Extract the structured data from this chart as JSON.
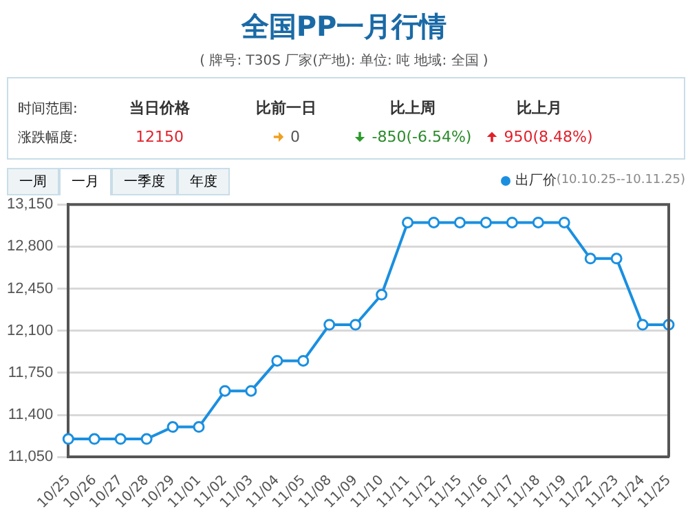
{
  "chart_data": {
    "type": "line",
    "title": "全国PP一月行情",
    "subtitle": "( 牌号: T30S 厂家(产地): 单位: 吨 地域: 全国 )",
    "annotations": [
      "时间范围:",
      "涨跌幅度:",
      "当日价格",
      "12150",
      "比前一日",
      "0",
      "比上周",
      "-850(-6.54%)",
      "比上月",
      "950(8.48%)",
      "一周",
      "一月",
      "一季度",
      "年度",
      "(10.10.25--10.11.25)"
    ],
    "categories": [
      "10/25",
      "10/26",
      "10/27",
      "10/28",
      "10/29",
      "11/01",
      "11/02",
      "11/03",
      "11/04",
      "11/05",
      "11/08",
      "11/09",
      "11/10",
      "11/11",
      "11/12",
      "11/15",
      "11/16",
      "11/17",
      "11/18",
      "11/19",
      "11/22",
      "11/23",
      "11/24",
      "11/25"
    ],
    "series": [
      {
        "name": "出厂价",
        "color": "#1a8fe0",
        "values": [
          11200,
          11200,
          11200,
          11200,
          11300,
          11300,
          11600,
          11600,
          11850,
          11850,
          12150,
          12150,
          12400,
          13000,
          13000,
          13000,
          13000,
          13000,
          13000,
          13000,
          12700,
          12700,
          12150,
          12150
        ]
      }
    ],
    "ylim": [
      11050,
      13150
    ],
    "yticks": [
      {
        "value": 11050,
        "label": "11,050"
      },
      {
        "value": 11400,
        "label": "11,400"
      },
      {
        "value": 11750,
        "label": "11,750"
      },
      {
        "value": 12100,
        "label": "12,100"
      },
      {
        "value": 12450,
        "label": "12,450"
      },
      {
        "value": 12800,
        "label": "12,800"
      },
      {
        "value": 13150,
        "label": "13,150"
      }
    ],
    "grid": "y",
    "legend": "top right",
    "marker": "circle",
    "line_style": "solid"
  }
}
